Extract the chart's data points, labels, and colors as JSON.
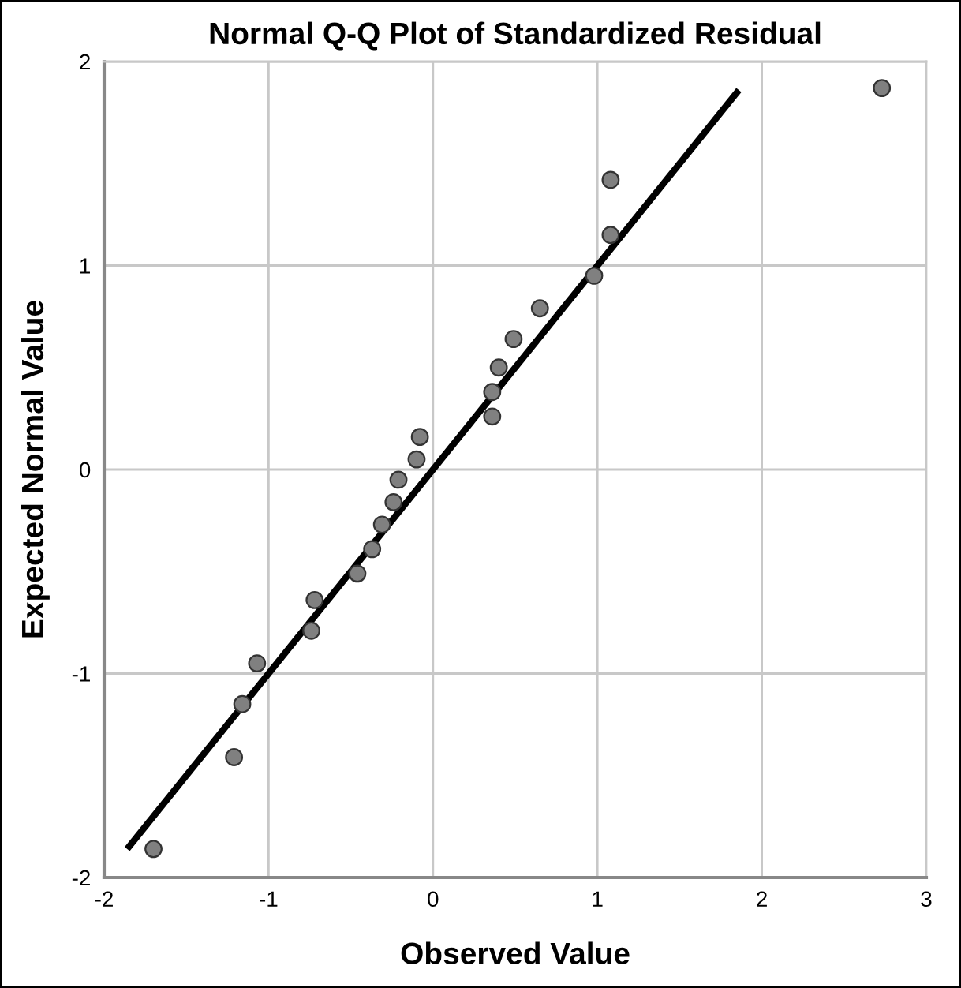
{
  "chart_data": {
    "type": "scatter",
    "title": "Normal Q-Q Plot of Standardized Residual",
    "xlabel": "Observed Value",
    "ylabel": "Expected Normal Value",
    "series": [
      {
        "color": "#808080",
        "marker": "circle",
        "x": [
          -1.7,
          -1.21,
          -1.16,
          -1.07,
          -0.74,
          -0.72,
          -0.46,
          -0.37,
          -0.31,
          -0.24,
          -0.21,
          -0.1,
          -0.08,
          0.36,
          0.36,
          0.4,
          0.49,
          0.65,
          0.98,
          1.08,
          1.08,
          2.73
        ],
        "values": [
          -1.86,
          -1.41,
          -1.15,
          -0.95,
          -0.79,
          -0.64,
          -0.51,
          -0.39,
          -0.27,
          -0.16,
          -0.05,
          0.05,
          0.16,
          0.26,
          0.38,
          0.5,
          0.64,
          0.79,
          0.95,
          1.15,
          1.42,
          1.87
        ]
      },
      {
        "type": "line",
        "color": "#000000",
        "marker": "none",
        "line_style": "solid",
        "x": [
          -1.86,
          1.86
        ],
        "values": [
          -1.86,
          1.86
        ]
      }
    ],
    "xlim": [
      -2,
      3
    ],
    "xticks": [
      -2,
      -1,
      0,
      1,
      2,
      3
    ],
    "ylim": [
      -2,
      2
    ],
    "yticks": [
      -2,
      -1,
      0,
      1,
      2
    ],
    "grid": true
  }
}
